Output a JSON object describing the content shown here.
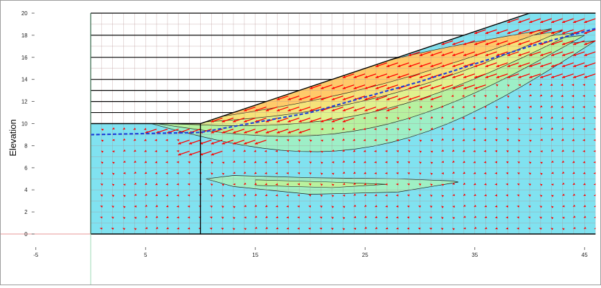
{
  "chart_data": {
    "type": "contour",
    "title": "",
    "xlabel": "",
    "ylabel": "Elevation",
    "xlim": [
      -5,
      46
    ],
    "ylim": [
      -2,
      20
    ],
    "x_ticks": [
      -5,
      5,
      15,
      25,
      35,
      45
    ],
    "y_ticks": [
      0,
      2,
      4,
      6,
      8,
      10,
      12,
      14,
      16,
      18,
      20
    ],
    "grid": "mesh",
    "ground_surface": [
      [
        0,
        10
      ],
      [
        10,
        10
      ],
      [
        40,
        20
      ],
      [
        46,
        20
      ]
    ],
    "water_table": [
      [
        0,
        9
      ],
      [
        10,
        9.2
      ],
      [
        20,
        11
      ],
      [
        30,
        13.8
      ],
      [
        40,
        17
      ],
      [
        46,
        18.6
      ]
    ],
    "soil_layer_lines": [
      11,
      12,
      13,
      14,
      16,
      18,
      20
    ],
    "model_base": 0,
    "model_left": 0,
    "model_right": 46,
    "inner_boundary_x": 10,
    "colors": {
      "base_fill": "#80e2f0",
      "contour_1": "#9ff0c4",
      "contour_2": "#b9f29e",
      "contour_3": "#e3f28e",
      "contour_4": "#f6e27a",
      "contour_5": "#ffc96a",
      "vectors": "#ff0000",
      "water_table": "#1f3fd8",
      "mesh": "#b08a8a",
      "boundary": "#000000"
    }
  }
}
